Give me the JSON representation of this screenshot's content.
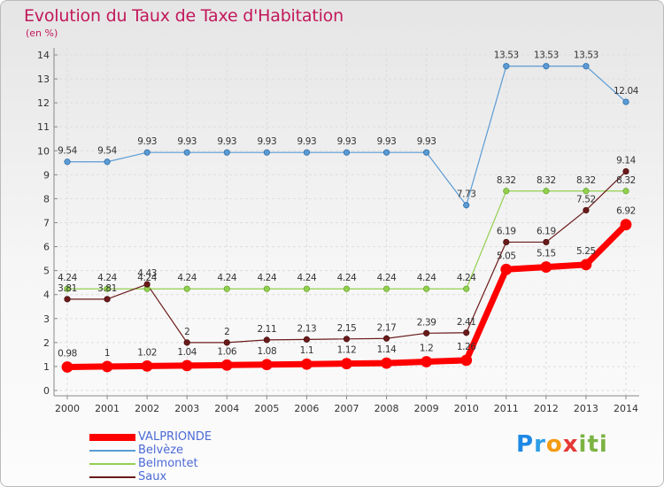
{
  "title": "Evolution du Taux de Taxe d'Habitation",
  "unit_label": "(en %)",
  "logo_text": "Proxiti",
  "colors": {
    "title": "#c2185b",
    "legend_text": "#4c6ad6",
    "VALPRIONDE": "#ff0000",
    "Belvèze": "#5b9bd5",
    "Belmontet": "#92d050",
    "Saux": "#6b1a1a"
  },
  "legend": [
    "VALPRIONDE",
    "Belvèze",
    "Belmontet",
    "Saux"
  ],
  "chart_data": {
    "type": "line",
    "title": "Evolution du Taux de Taxe d'Habitation",
    "ylabel": "(en %)",
    "xlabel": "",
    "x": [
      2000,
      2001,
      2002,
      2003,
      2004,
      2005,
      2006,
      2007,
      2008,
      2009,
      2010,
      2011,
      2012,
      2013,
      2014
    ],
    "ylim": [
      0,
      14
    ],
    "yticks": [
      0,
      1,
      2,
      3,
      4,
      5,
      6,
      7,
      8,
      9,
      10,
      11,
      12,
      13,
      14
    ],
    "grid": true,
    "legend_position": "bottom-left",
    "series": [
      {
        "name": "VALPRIONDE",
        "values": [
          0.98,
          1,
          1.02,
          1.04,
          1.06,
          1.08,
          1.1,
          1.12,
          1.14,
          1.2,
          1.26,
          5.05,
          5.15,
          5.25,
          6.92
        ],
        "labels": [
          "0.98",
          "1",
          "1.02",
          "1.04",
          "1.06",
          "1.08",
          "1.1",
          "1.12",
          "1.14",
          "1.2",
          "1.26",
          "5.05",
          "5.15",
          "5.25",
          "6.92"
        ]
      },
      {
        "name": "Belvèze",
        "values": [
          9.54,
          9.54,
          9.93,
          9.93,
          9.93,
          9.93,
          9.93,
          9.93,
          9.93,
          9.93,
          7.73,
          13.53,
          13.53,
          13.53,
          12.04
        ],
        "labels": [
          "9.54",
          "9.54",
          "9.93",
          "9.93",
          "9.93",
          "9.93",
          "9.93",
          "9.93",
          "9.93",
          "9.93",
          "7.73",
          "13.53",
          "13.53",
          "13.53",
          "12.04"
        ]
      },
      {
        "name": "Belmontet",
        "values": [
          4.24,
          4.24,
          4.24,
          4.24,
          4.24,
          4.24,
          4.24,
          4.24,
          4.24,
          4.24,
          4.24,
          8.32,
          8.32,
          8.32,
          8.32
        ],
        "labels": [
          "4.24",
          "4.24",
          "4.24",
          "4.24",
          "4.24",
          "4.24",
          "4.24",
          "4.24",
          "4.24",
          "4.24",
          "4.24",
          "8.32",
          "8.32",
          "8.32",
          "8.32"
        ]
      },
      {
        "name": "Saux",
        "values": [
          3.81,
          3.81,
          4.43,
          2,
          2,
          2.11,
          2.13,
          2.15,
          2.17,
          2.39,
          2.41,
          6.19,
          6.19,
          7.52,
          9.14
        ],
        "labels": [
          "3.81",
          "3.81",
          "4.43",
          "2",
          "2",
          "2.11",
          "2.13",
          "2.15",
          "2.17",
          "2.39",
          "2.41",
          "6.19",
          "6.19",
          "7.52",
          "9.14"
        ]
      }
    ]
  }
}
